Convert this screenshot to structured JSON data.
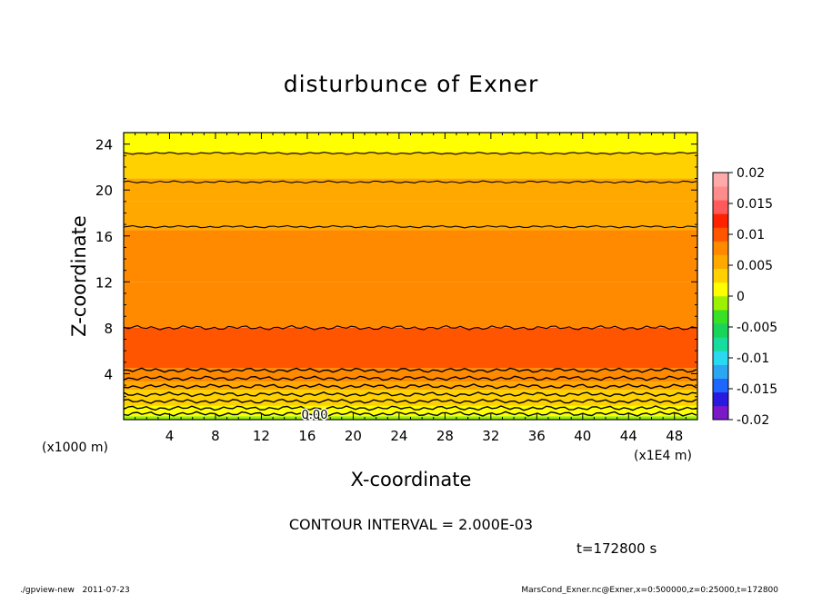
{
  "chart_data": {
    "type": "heatmap",
    "title": "disturbunce of Exner",
    "xlabel": "X-coordinate",
    "ylabel": "Z-coordinate",
    "x_unit_label": "(x1E4 m)",
    "y_unit_label": "(x1000 m)",
    "x_ticks": [
      4,
      8,
      12,
      16,
      20,
      24,
      28,
      32,
      36,
      40,
      44,
      48
    ],
    "y_ticks": [
      4,
      8,
      12,
      16,
      20,
      24
    ],
    "xlim": [
      0,
      50
    ],
    "ylim": [
      0,
      25
    ],
    "colorbar": {
      "ticks": [
        "0.02",
        "0.015",
        "0.01",
        "0.005",
        "0",
        "-0.005",
        "-0.01",
        "-0.015",
        "-0.02"
      ],
      "range": [
        -0.02,
        0.02
      ],
      "colors": [
        "#7b18c8",
        "#2a1ae0",
        "#1f66ff",
        "#2aa7f2",
        "#29d9ee",
        "#16dc9e",
        "#1ad45a",
        "#38e026",
        "#9cf000",
        "#ffff00",
        "#ffd100",
        "#ffa800",
        "#ff8a00",
        "#ff5500",
        "#ff2200",
        "#ff5a5a",
        "#ff8c8c",
        "#ffaaaa"
      ]
    },
    "field_bands": [
      {
        "z": 0.3,
        "value": -0.001
      },
      {
        "z": 0.7,
        "value": 0.0005
      },
      {
        "z": 1.2,
        "value": 0.0015
      },
      {
        "z": 1.9,
        "value": 0.0025
      },
      {
        "z": 2.6,
        "value": 0.0035
      },
      {
        "z": 3.3,
        "value": 0.0045
      },
      {
        "z": 4.5,
        "value": 0.0075
      },
      {
        "z": 8.0,
        "value": 0.009
      },
      {
        "z": 12.0,
        "value": 0.0085
      },
      {
        "z": 16.5,
        "value": 0.0075
      },
      {
        "z": 19.0,
        "value": 0.0055
      },
      {
        "z": 21.0,
        "value": 0.0045
      },
      {
        "z": 23.3,
        "value": 0.003
      },
      {
        "z": 25.0,
        "value": 0.0015
      }
    ],
    "contour_levels_z": [
      0.5,
      1.0,
      1.6,
      2.2,
      2.9,
      3.6,
      4.3,
      8.0,
      16.8,
      20.7,
      23.2
    ],
    "contour_label": "0.00",
    "contour_interval_text": "CONTOUR INTERVAL = 2.000E-03",
    "time_text": "t=172800 s"
  },
  "footer": {
    "left": "./gpview-new   2011-07-23",
    "right": "MarsCond_Exner.nc@Exner,x=0:500000,z=0:25000,t=172800"
  }
}
